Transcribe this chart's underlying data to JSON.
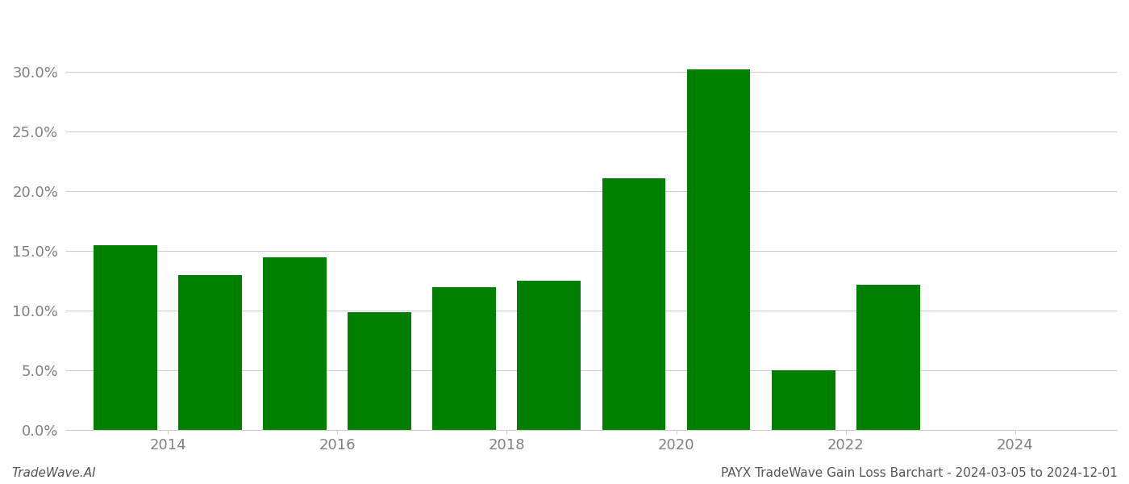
{
  "years": [
    2013,
    2014,
    2015,
    2016,
    2017,
    2018,
    2019,
    2020,
    2021,
    2022,
    2023
  ],
  "values": [
    0.155,
    0.13,
    0.145,
    0.099,
    0.12,
    0.125,
    0.211,
    0.302,
    0.05,
    0.122,
    0.0
  ],
  "bar_color": "#008000",
  "background_color": "#ffffff",
  "grid_color": "#cccccc",
  "footer_left": "TradeWave.AI",
  "footer_right": "PAYX TradeWave Gain Loss Barchart - 2024-03-05 to 2024-12-01",
  "ylim": [
    0,
    0.35
  ],
  "yticks": [
    0.0,
    0.05,
    0.1,
    0.15,
    0.2,
    0.25,
    0.3
  ],
  "xtick_labels": [
    "2014",
    "2016",
    "2018",
    "2020",
    "2022",
    "2024"
  ],
  "xtick_positions": [
    2013.5,
    2015.5,
    2017.5,
    2019.5,
    2021.5,
    2023.5
  ],
  "xlim_left": 2012.3,
  "xlim_right": 2024.7,
  "bar_width": 0.75,
  "tick_label_color": "#808080",
  "footer_fontsize": 11,
  "tick_fontsize": 13
}
